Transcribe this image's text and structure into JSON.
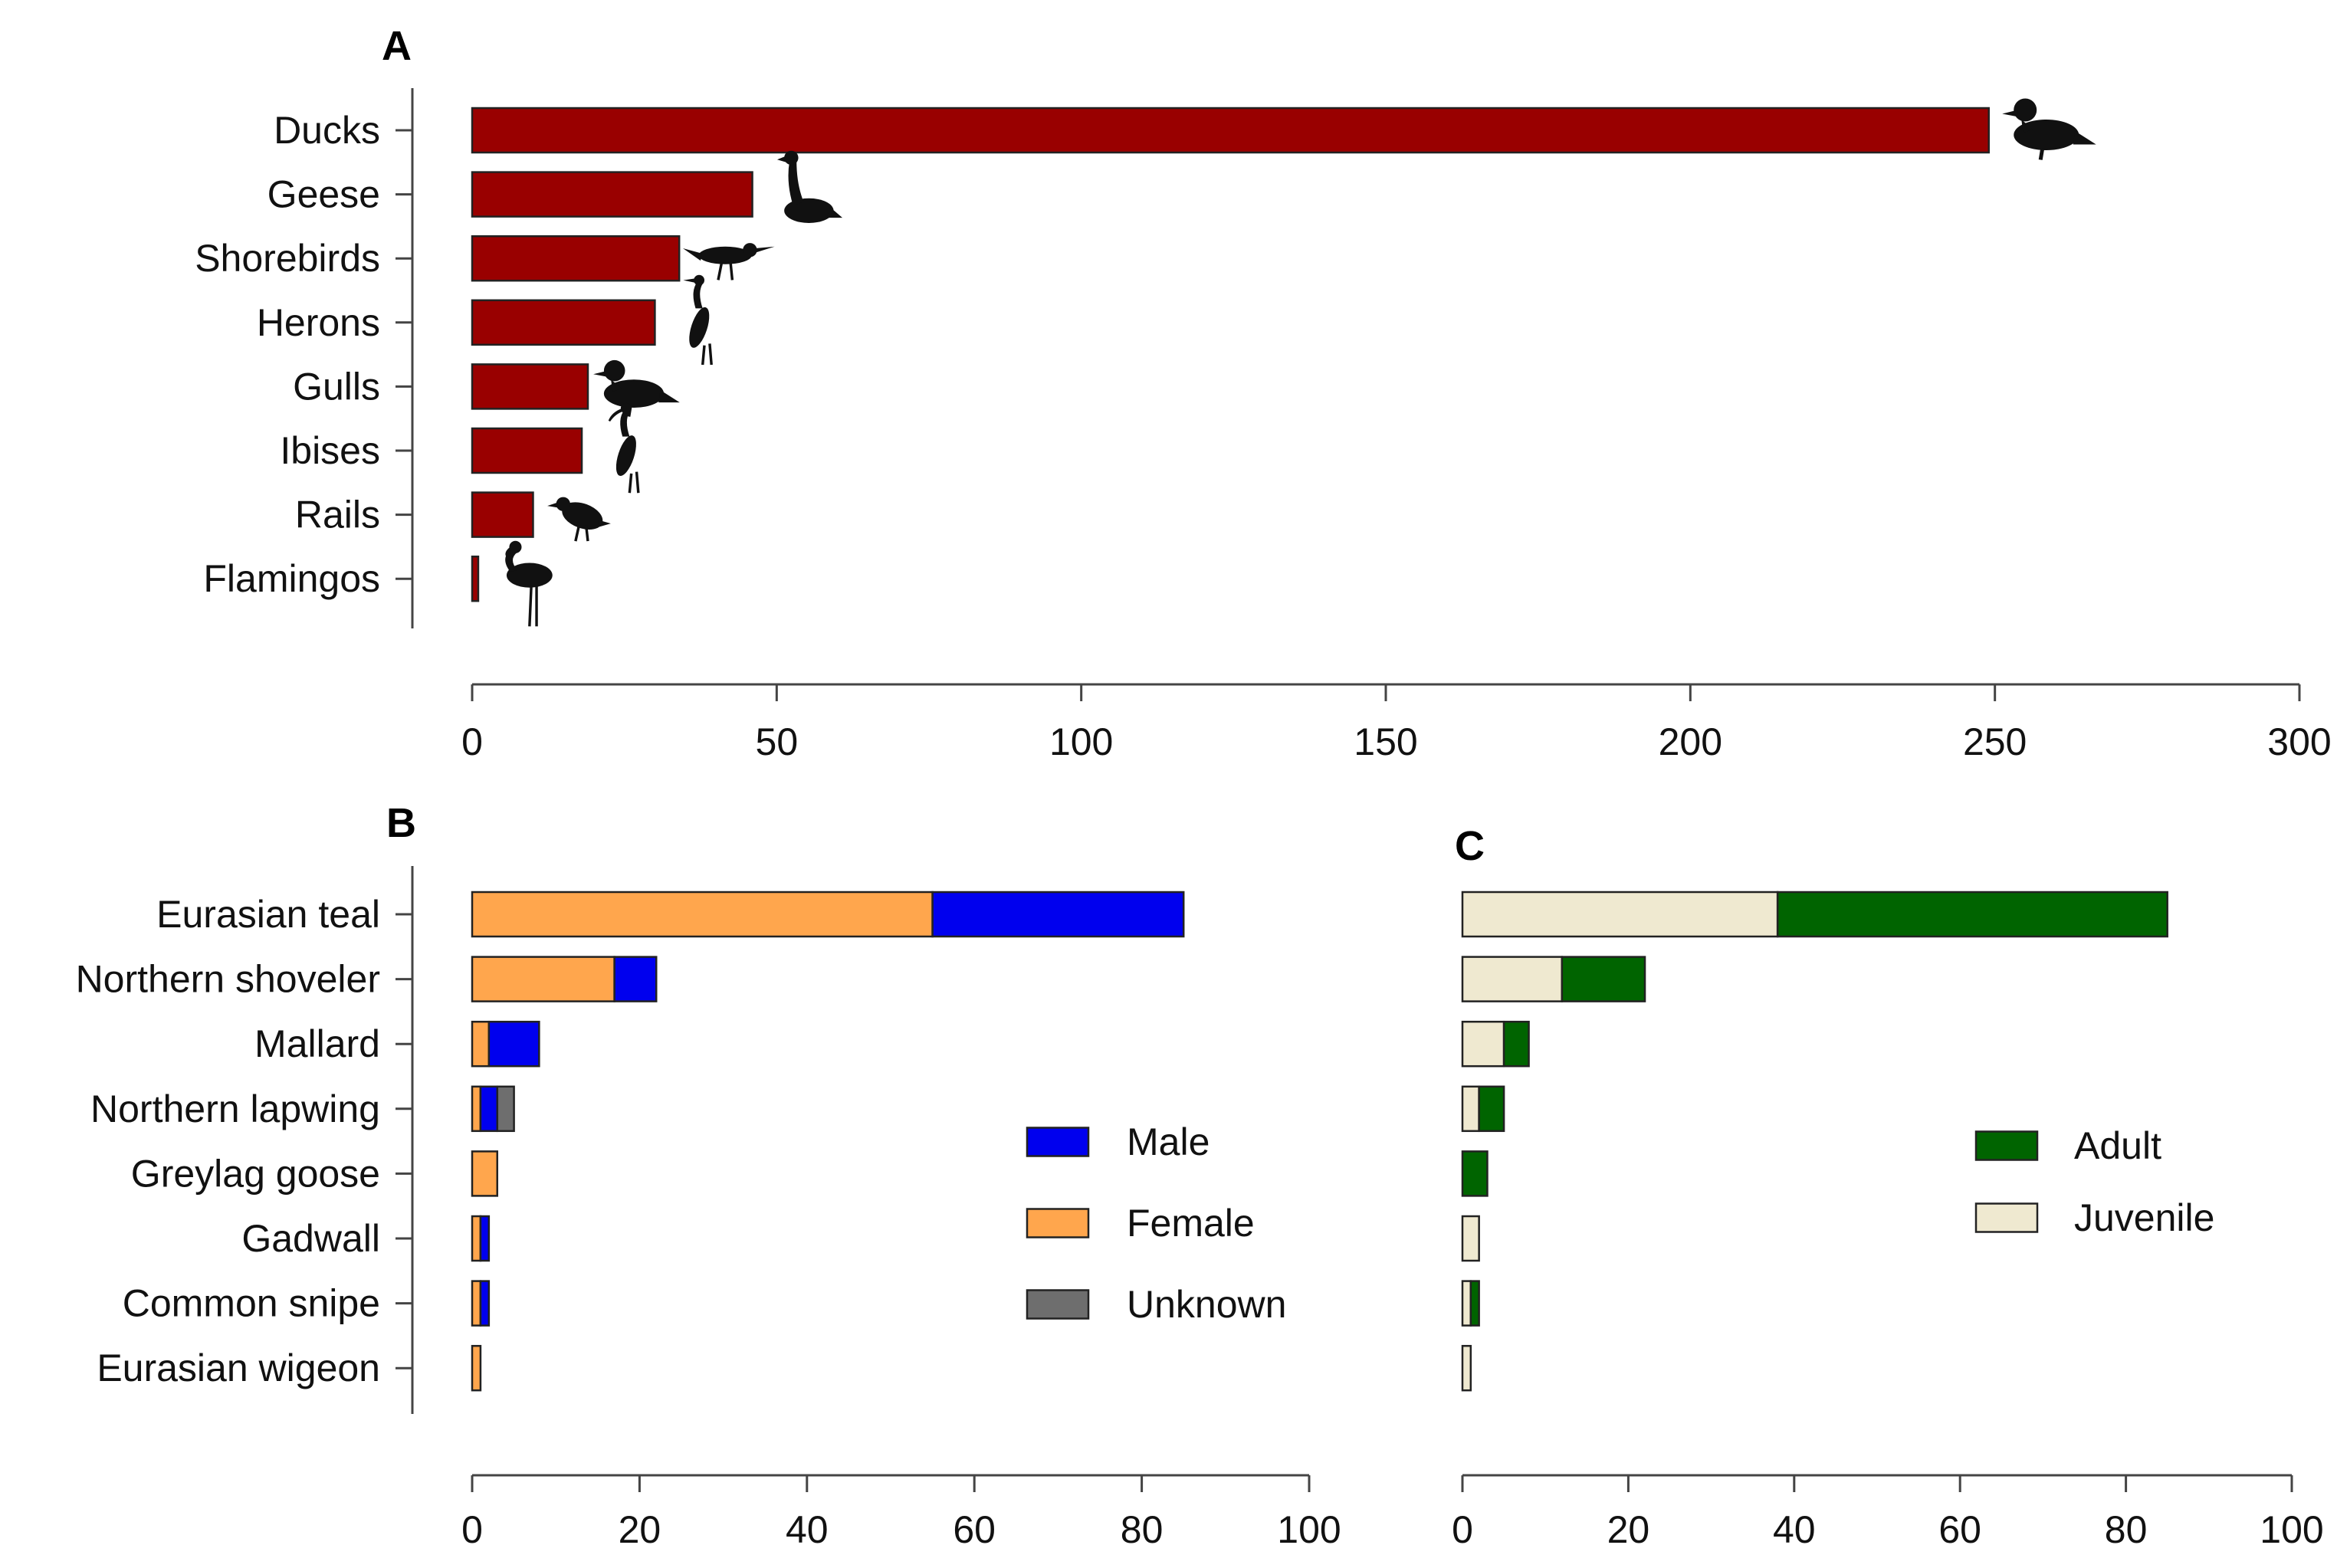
{
  "chart_data": [
    {
      "panel": "A",
      "type": "bar",
      "orientation": "horizontal",
      "categories": [
        "Ducks",
        "Geese",
        "Shorebirds",
        "Herons",
        "Gulls",
        "Ibises",
        "Rails",
        "Flamingos"
      ],
      "values": [
        249,
        46,
        34,
        30,
        19,
        18,
        10,
        1
      ],
      "xlim": [
        0,
        300
      ],
      "xticks": [
        0,
        50,
        100,
        150,
        200,
        250,
        300
      ],
      "bar_color": "#990000",
      "icons": [
        "duck-silhouette-icon",
        "goose-silhouette-icon",
        "shorebird-silhouette-icon",
        "heron-silhouette-icon",
        "gull-silhouette-icon",
        "ibis-silhouette-icon",
        "rail-silhouette-icon",
        "flamingo-silhouette-icon"
      ]
    },
    {
      "panel": "B",
      "type": "bar",
      "orientation": "horizontal",
      "stacked": true,
      "categories": [
        "Eurasian teal",
        "Northern shoveler",
        "Mallard",
        "Northern lapwing",
        "Greylag goose",
        "Gadwall",
        "Common snipe",
        "Eurasian wigeon"
      ],
      "series": [
        {
          "name": "Female",
          "color": "#ffa64d",
          "values": [
            55,
            17,
            2,
            1,
            3,
            1,
            1,
            1
          ]
        },
        {
          "name": "Male",
          "color": "#0000ee",
          "values": [
            30,
            5,
            6,
            2,
            0,
            1,
            1,
            0
          ]
        },
        {
          "name": "Unknown",
          "color": "#6e6e6e",
          "values": [
            0,
            0,
            0,
            2,
            0,
            0,
            0,
            0
          ]
        }
      ],
      "legend": [
        "Male",
        "Female",
        "Unknown"
      ],
      "xlim": [
        0,
        100
      ],
      "xticks": [
        0,
        20,
        40,
        60,
        80,
        100
      ],
      "legend_position": "center-right"
    },
    {
      "panel": "C",
      "type": "bar",
      "orientation": "horizontal",
      "stacked": true,
      "categories": [
        "Eurasian teal",
        "Northern shoveler",
        "Mallard",
        "Northern lapwing",
        "Greylag goose",
        "Gadwall",
        "Common snipe",
        "Eurasian wigeon"
      ],
      "series": [
        {
          "name": "Juvenile",
          "color": "#efe9d0",
          "values": [
            38,
            12,
            5,
            2,
            0,
            2,
            1,
            1
          ]
        },
        {
          "name": "Adult",
          "color": "#006400",
          "values": [
            47,
            10,
            3,
            3,
            3,
            0,
            1,
            0
          ]
        }
      ],
      "legend": [
        "Adult",
        "Juvenile"
      ],
      "xlim": [
        0,
        100
      ],
      "xticks": [
        0,
        20,
        40,
        60,
        80,
        100
      ],
      "legend_position": "center-right"
    }
  ]
}
